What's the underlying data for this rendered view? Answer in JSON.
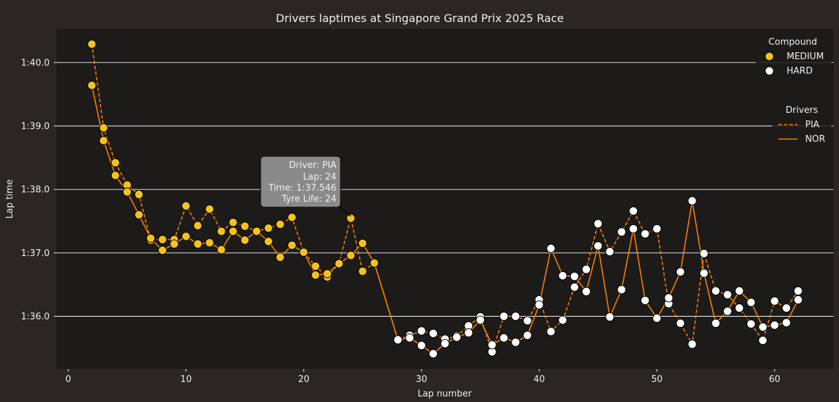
{
  "chart_data": {
    "type": "line",
    "title": "Drivers laptimes at Singapore Grand Prix 2025 Race",
    "xlabel": "Lap number",
    "ylabel": "Lap time",
    "xlim": [
      -1,
      65
    ],
    "ylim": [
      95.17,
      100.53
    ],
    "x_ticks": [
      0,
      10,
      20,
      30,
      40,
      50,
      60
    ],
    "y_ticks": [
      {
        "value": 96.0,
        "label": "1:36.0"
      },
      {
        "value": 97.0,
        "label": "1:37.0"
      },
      {
        "value": 98.0,
        "label": "1:38.0"
      },
      {
        "value": 99.0,
        "label": "1:39.0"
      },
      {
        "value": 100.0,
        "label": "1:40.0"
      }
    ],
    "grid": "horizontal",
    "compound_legend": {
      "title": "Compound",
      "placement": "top-right",
      "items": [
        {
          "label": "MEDIUM",
          "color": "#f5c21d"
        },
        {
          "label": "HARD",
          "color": "#ffffff"
        }
      ]
    },
    "driver_legend": {
      "title": "Drivers",
      "placement": "right",
      "items": [
        {
          "label": "PIA",
          "style": "dashed",
          "color": "#ff8000"
        },
        {
          "label": "NOR",
          "style": "solid",
          "color": "#ff8000"
        }
      ]
    },
    "series": [
      {
        "name": "PIA",
        "style": "dashed",
        "color": "#ff8000",
        "points": [
          {
            "x": 2,
            "y": 100.29,
            "c": "MEDIUM"
          },
          {
            "x": 3,
            "y": 98.97,
            "c": "MEDIUM"
          },
          {
            "x": 4,
            "y": 98.42,
            "c": "MEDIUM"
          },
          {
            "x": 5,
            "y": 98.07,
            "c": "MEDIUM"
          },
          {
            "x": 6,
            "y": 97.92,
            "c": "MEDIUM"
          },
          {
            "x": 7,
            "y": 97.2,
            "c": "MEDIUM"
          },
          {
            "x": 8,
            "y": 97.21,
            "c": "MEDIUM"
          },
          {
            "x": 9,
            "y": 97.21,
            "c": "MEDIUM"
          },
          {
            "x": 10,
            "y": 97.74,
            "c": "MEDIUM"
          },
          {
            "x": 11,
            "y": 97.43,
            "c": "MEDIUM"
          },
          {
            "x": 12,
            "y": 97.69,
            "c": "MEDIUM"
          },
          {
            "x": 13,
            "y": 97.34,
            "c": "MEDIUM"
          },
          {
            "x": 14,
            "y": 97.48,
            "c": "MEDIUM"
          },
          {
            "x": 15,
            "y": 97.42,
            "c": "MEDIUM"
          },
          {
            "x": 16,
            "y": 97.34,
            "c": "MEDIUM"
          },
          {
            "x": 17,
            "y": 97.39,
            "c": "MEDIUM"
          },
          {
            "x": 18,
            "y": 97.45,
            "c": "MEDIUM"
          },
          {
            "x": 19,
            "y": 97.56,
            "c": "MEDIUM"
          },
          {
            "x": 20,
            "y": 97.01,
            "c": "MEDIUM"
          },
          {
            "x": 21,
            "y": 96.79,
            "c": "MEDIUM"
          },
          {
            "x": 22,
            "y": 96.62,
            "c": "MEDIUM"
          },
          {
            "x": 23,
            "y": 96.84,
            "c": "MEDIUM"
          },
          {
            "x": 24,
            "y": 97.546,
            "c": "MEDIUM"
          },
          {
            "x": 25,
            "y": 96.71,
            "c": "MEDIUM"
          },
          {
            "x": 26,
            "y": 96.84,
            "c": "MEDIUM"
          },
          {
            "x": 28,
            "y": 95.63,
            "c": "HARD"
          },
          {
            "x": 29,
            "y": 95.7,
            "c": "HARD"
          },
          {
            "x": 30,
            "y": 95.77,
            "c": "HARD"
          },
          {
            "x": 31,
            "y": 95.73,
            "c": "HARD"
          },
          {
            "x": 32,
            "y": 95.64,
            "c": "HARD"
          },
          {
            "x": 33,
            "y": 95.69,
            "c": "HARD"
          },
          {
            "x": 34,
            "y": 95.85,
            "c": "HARD"
          },
          {
            "x": 35,
            "y": 95.99,
            "c": "HARD"
          },
          {
            "x": 36,
            "y": 95.44,
            "c": "HARD"
          },
          {
            "x": 37,
            "y": 96.0,
            "c": "HARD"
          },
          {
            "x": 38,
            "y": 96.0,
            "c": "HARD"
          },
          {
            "x": 39,
            "y": 95.93,
            "c": "HARD"
          },
          {
            "x": 40,
            "y": 96.26,
            "c": "HARD"
          },
          {
            "x": 41,
            "y": 95.76,
            "c": "HARD"
          },
          {
            "x": 42,
            "y": 95.94,
            "c": "HARD"
          },
          {
            "x": 43,
            "y": 96.46,
            "c": "HARD"
          },
          {
            "x": 44,
            "y": 96.74,
            "c": "HARD"
          },
          {
            "x": 45,
            "y": 97.46,
            "c": "HARD"
          },
          {
            "x": 46,
            "y": 97.02,
            "c": "HARD"
          },
          {
            "x": 47,
            "y": 97.33,
            "c": "HARD"
          },
          {
            "x": 48,
            "y": 97.66,
            "c": "HARD"
          },
          {
            "x": 49,
            "y": 97.3,
            "c": "HARD"
          },
          {
            "x": 50,
            "y": 97.38,
            "c": "HARD"
          },
          {
            "x": 51,
            "y": 96.2,
            "c": "HARD"
          },
          {
            "x": 52,
            "y": 95.89,
            "c": "HARD"
          },
          {
            "x": 53,
            "y": 95.56,
            "c": "HARD"
          },
          {
            "x": 54,
            "y": 96.99,
            "c": "HARD"
          },
          {
            "x": 55,
            "y": 96.4,
            "c": "HARD"
          },
          {
            "x": 56,
            "y": 96.34,
            "c": "HARD"
          },
          {
            "x": 57,
            "y": 96.13,
            "c": "HARD"
          },
          {
            "x": 58,
            "y": 95.88,
            "c": "HARD"
          },
          {
            "x": 59,
            "y": 95.62,
            "c": "HARD"
          },
          {
            "x": 60,
            "y": 96.24,
            "c": "HARD"
          },
          {
            "x": 61,
            "y": 96.13,
            "c": "HARD"
          },
          {
            "x": 62,
            "y": 96.4,
            "c": "HARD"
          }
        ]
      },
      {
        "name": "NOR",
        "style": "solid",
        "color": "#ff8000",
        "points": [
          {
            "x": 2,
            "y": 99.64,
            "c": "MEDIUM"
          },
          {
            "x": 3,
            "y": 98.77,
            "c": "MEDIUM"
          },
          {
            "x": 4,
            "y": 98.22,
            "c": "MEDIUM"
          },
          {
            "x": 5,
            "y": 97.96,
            "c": "MEDIUM"
          },
          {
            "x": 6,
            "y": 97.6,
            "c": "MEDIUM"
          },
          {
            "x": 7,
            "y": 97.23,
            "c": "MEDIUM"
          },
          {
            "x": 8,
            "y": 97.04,
            "c": "MEDIUM"
          },
          {
            "x": 9,
            "y": 97.14,
            "c": "MEDIUM"
          },
          {
            "x": 10,
            "y": 97.26,
            "c": "MEDIUM"
          },
          {
            "x": 11,
            "y": 97.14,
            "c": "MEDIUM"
          },
          {
            "x": 12,
            "y": 97.16,
            "c": "MEDIUM"
          },
          {
            "x": 13,
            "y": 97.05,
            "c": "MEDIUM"
          },
          {
            "x": 14,
            "y": 97.34,
            "c": "MEDIUM"
          },
          {
            "x": 15,
            "y": 97.2,
            "c": "MEDIUM"
          },
          {
            "x": 16,
            "y": 97.34,
            "c": "MEDIUM"
          },
          {
            "x": 17,
            "y": 97.18,
            "c": "MEDIUM"
          },
          {
            "x": 18,
            "y": 96.93,
            "c": "MEDIUM"
          },
          {
            "x": 19,
            "y": 97.12,
            "c": "MEDIUM"
          },
          {
            "x": 20,
            "y": 97.01,
            "c": "MEDIUM"
          },
          {
            "x": 21,
            "y": 96.65,
            "c": "MEDIUM"
          },
          {
            "x": 22,
            "y": 96.67,
            "c": "MEDIUM"
          },
          {
            "x": 23,
            "y": 96.83,
            "c": "MEDIUM"
          },
          {
            "x": 24,
            "y": 96.96,
            "c": "MEDIUM"
          },
          {
            "x": 25,
            "y": 97.15,
            "c": "MEDIUM"
          },
          {
            "x": 26,
            "y": 96.84,
            "c": "MEDIUM"
          },
          {
            "x": 28,
            "y": 95.63,
            "c": "HARD"
          },
          {
            "x": 29,
            "y": 95.66,
            "c": "HARD"
          },
          {
            "x": 30,
            "y": 95.54,
            "c": "HARD"
          },
          {
            "x": 31,
            "y": 95.41,
            "c": "HARD"
          },
          {
            "x": 32,
            "y": 95.57,
            "c": "HARD"
          },
          {
            "x": 33,
            "y": 95.67,
            "c": "HARD"
          },
          {
            "x": 34,
            "y": 95.74,
            "c": "HARD"
          },
          {
            "x": 35,
            "y": 95.94,
            "c": "HARD"
          },
          {
            "x": 36,
            "y": 95.55,
            "c": "HARD"
          },
          {
            "x": 37,
            "y": 95.66,
            "c": "HARD"
          },
          {
            "x": 38,
            "y": 95.59,
            "c": "HARD"
          },
          {
            "x": 39,
            "y": 95.7,
            "c": "HARD"
          },
          {
            "x": 40,
            "y": 96.18,
            "c": "HARD"
          },
          {
            "x": 41,
            "y": 97.07,
            "c": "HARD"
          },
          {
            "x": 42,
            "y": 96.64,
            "c": "HARD"
          },
          {
            "x": 43,
            "y": 96.63,
            "c": "HARD"
          },
          {
            "x": 44,
            "y": 96.39,
            "c": "HARD"
          },
          {
            "x": 45,
            "y": 97.11,
            "c": "HARD"
          },
          {
            "x": 46,
            "y": 95.99,
            "c": "HARD"
          },
          {
            "x": 47,
            "y": 96.42,
            "c": "HARD"
          },
          {
            "x": 48,
            "y": 97.38,
            "c": "HARD"
          },
          {
            "x": 49,
            "y": 96.25,
            "c": "HARD"
          },
          {
            "x": 50,
            "y": 95.97,
            "c": "HARD"
          },
          {
            "x": 51,
            "y": 96.29,
            "c": "HARD"
          },
          {
            "x": 52,
            "y": 96.7,
            "c": "HARD"
          },
          {
            "x": 53,
            "y": 97.82,
            "c": "HARD"
          },
          {
            "x": 54,
            "y": 96.68,
            "c": "HARD"
          },
          {
            "x": 55,
            "y": 95.89,
            "c": "HARD"
          },
          {
            "x": 56,
            "y": 96.08,
            "c": "HARD"
          },
          {
            "x": 57,
            "y": 96.4,
            "c": "HARD"
          },
          {
            "x": 58,
            "y": 96.22,
            "c": "HARD"
          },
          {
            "x": 59,
            "y": 95.83,
            "c": "HARD"
          },
          {
            "x": 60,
            "y": 95.86,
            "c": "HARD"
          },
          {
            "x": 61,
            "y": 95.9,
            "c": "HARD"
          },
          {
            "x": 62,
            "y": 96.26,
            "c": "HARD"
          }
        ]
      }
    ],
    "tooltip": {
      "series": "PIA",
      "x": 24,
      "lines": [
        "Driver: PIA",
        "Lap: 24",
        "Time: 1:37.546",
        "Tyre Life: 24"
      ]
    }
  }
}
